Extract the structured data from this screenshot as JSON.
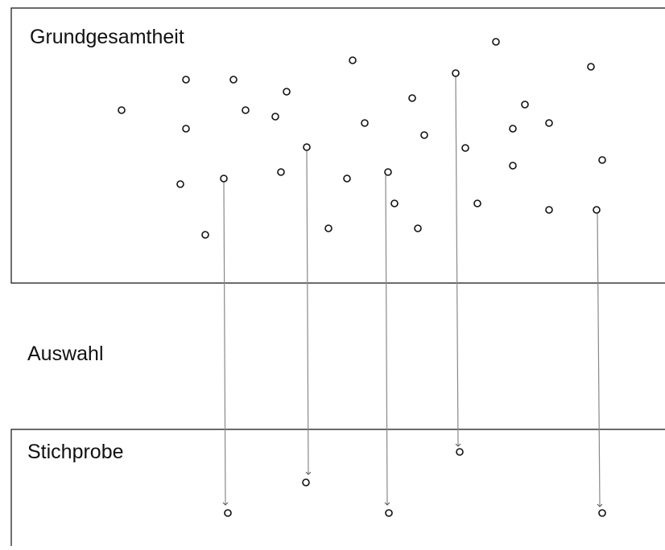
{
  "labels": {
    "population": "Grundgesamtheit",
    "selection": "Auswahl",
    "sample": "Stichprobe"
  },
  "colors": {
    "line": "#111111",
    "arrow": "#888888",
    "background": "#ffffff"
  }
}
